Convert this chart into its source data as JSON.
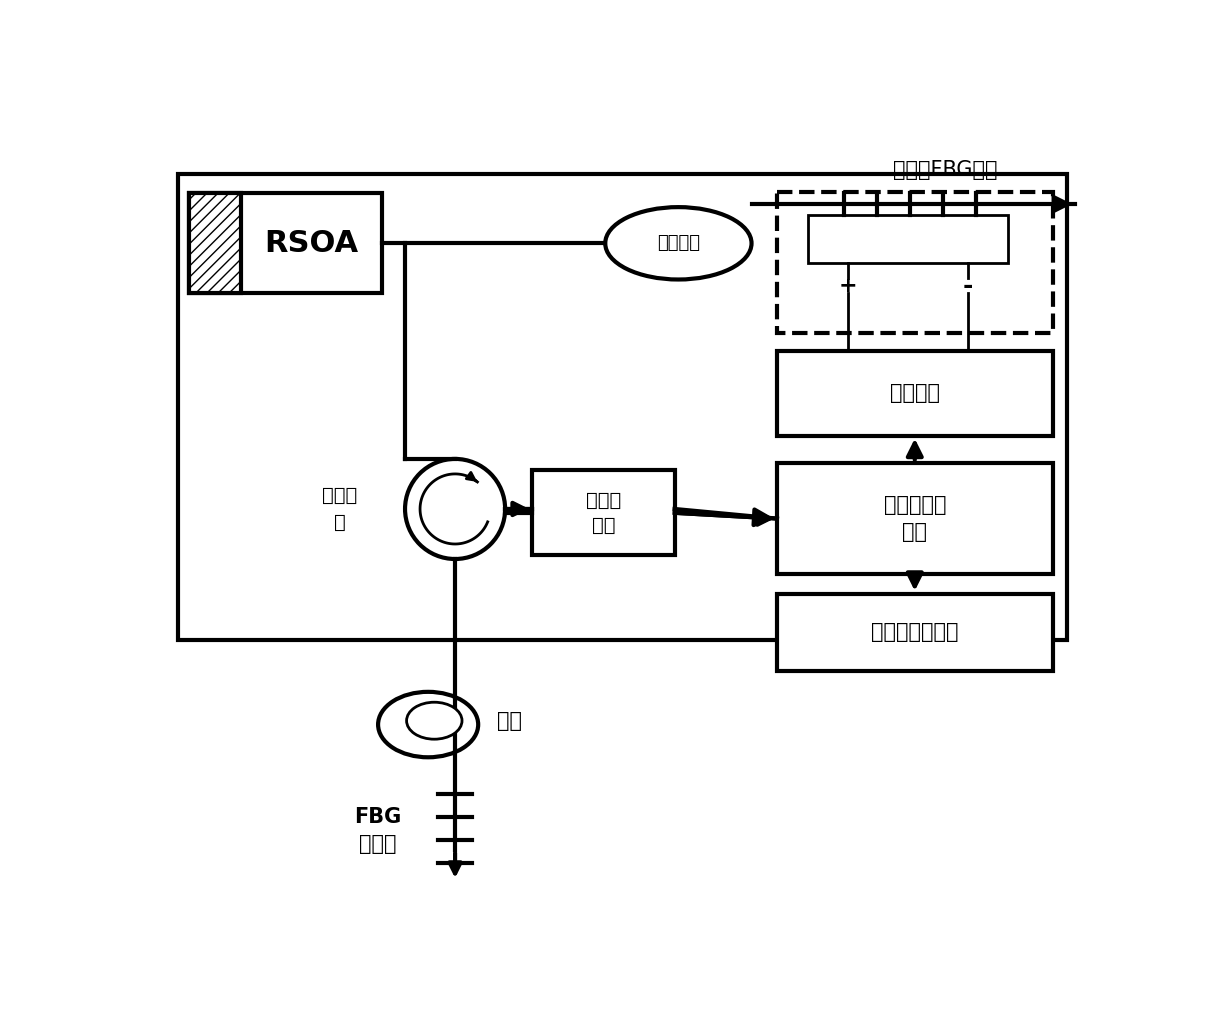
{
  "bg_color": "#ffffff",
  "rsoa_label": "RSOA",
  "coupler_label": "光耦合器",
  "tunable_fbg_label": "可调谐FBG单元",
  "power_supply_label": "可调电源",
  "circulator_line1": "光环形",
  "circulator_line2": "器",
  "detector_line1": "光电探",
  "detector_line2": "测器",
  "processor_line1": "处理及控制",
  "processor_line2": "单元",
  "output_label": "输出及显示单元",
  "fiber_label": "光纤",
  "fbg_sensor_line1": "FBG",
  "fbg_sensor_line2": "传感器",
  "plus_label": "+",
  "minus_label": "-"
}
